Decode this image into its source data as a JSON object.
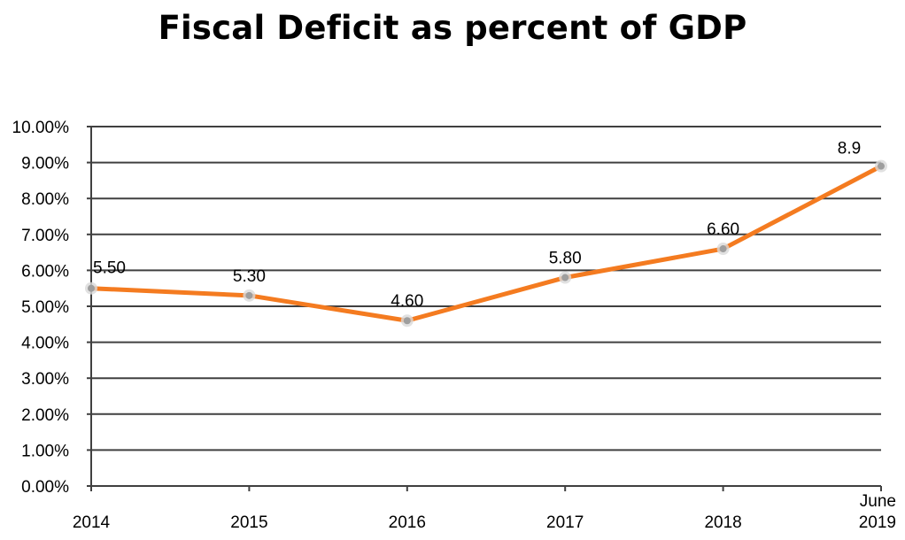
{
  "chart_data": {
    "type": "line",
    "title": "Fiscal Deficit as percent of GDP",
    "categories": [
      "2014",
      "2015",
      "2016",
      "2017",
      "2018",
      "June 2019"
    ],
    "x_tick_lines": [
      [
        "2014"
      ],
      [
        "2015"
      ],
      [
        "2016"
      ],
      [
        "2017"
      ],
      [
        "2018"
      ],
      [
        "June",
        "2019"
      ]
    ],
    "series": [
      {
        "values": [
          5.5,
          5.3,
          4.6,
          5.8,
          6.6,
          8.9
        ],
        "labels": [
          "5.50",
          "5.30",
          "4.60",
          "5.80",
          "6.60",
          "8.9"
        ],
        "color": "#f47b20"
      }
    ],
    "ylim": [
      0,
      10
    ],
    "y_ticks": [
      "0.00%",
      "1.00%",
      "2.00%",
      "3.00%",
      "4.00%",
      "5.00%",
      "6.00%",
      "7.00%",
      "8.00%",
      "9.00%",
      "10.00%"
    ],
    "grid": true,
    "legend": "none",
    "gridline_color": "#404040",
    "marker_color": "#9e9e9e"
  }
}
